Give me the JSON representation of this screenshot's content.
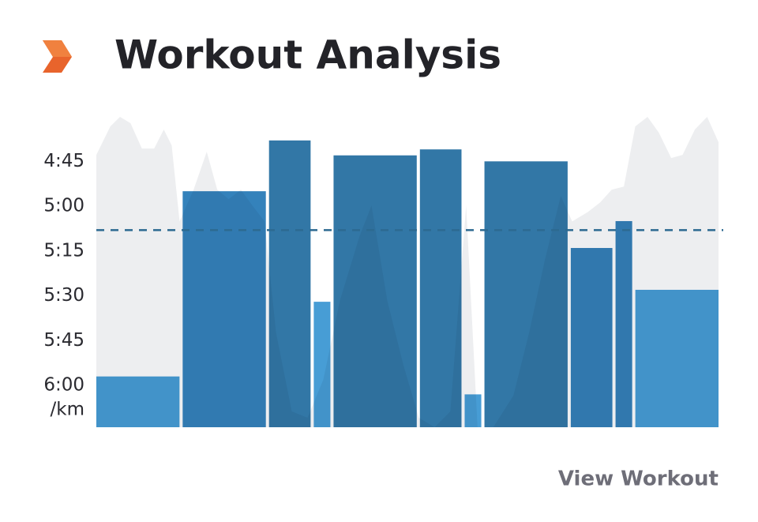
{
  "header": {
    "title": "Workout Analysis"
  },
  "chart_data": {
    "type": "bar",
    "y_unit_label": "/km",
    "distances": [
      1,
      1,
      0.5,
      0.2,
      1,
      0.5,
      0.2,
      1,
      0.5,
      0.2,
      1
    ],
    "values": [
      357,
      295,
      278,
      332,
      283,
      281,
      363,
      285,
      314,
      305,
      328
    ],
    "colors": [
      "#479dd5",
      "#3482bb",
      "#3277a6",
      "#479dd5",
      "#3277a6",
      "#3277a6",
      "#479dd5",
      "#3277a6",
      "#3480b8",
      "#3480b8",
      "#479dd5"
    ],
    "ylim": [
      374,
      268
    ],
    "yticks": [
      {
        "value": 285,
        "label": "4:45"
      },
      {
        "value": 300,
        "label": "5:00"
      },
      {
        "value": 315,
        "label": "5:15"
      },
      {
        "value": 330,
        "label": "5:30"
      },
      {
        "value": 345,
        "label": "5:45"
      },
      {
        "value": 360,
        "label": "6:00"
      }
    ],
    "average": 308,
    "average_color": "#2d6a91",
    "elevation": {
      "color": "rgba(20,30,50,0.075)",
      "ylim": [
        0,
        100
      ],
      "x": [
        0,
        0.16,
        0.27,
        0.39,
        0.52,
        0.66,
        0.77,
        0.86,
        0.95,
        1.11,
        1.26,
        1.38,
        1.51,
        1.65,
        1.78,
        1.92,
        2.05,
        2.23,
        2.41,
        2.59,
        2.78,
        3.0,
        3.14,
        3.32,
        3.5,
        3.68,
        3.86,
        4.04,
        4.22,
        4.35,
        4.53,
        4.76,
        4.94,
        5.12,
        5.3,
        5.43,
        5.61,
        5.75,
        5.88,
        6.02,
        6.15,
        6.29,
        6.42,
        6.56,
        6.69,
        6.83,
        6.97,
        7.1
      ],
      "values": [
        86,
        95,
        98,
        96,
        88,
        88,
        94,
        89,
        65,
        75,
        87,
        75,
        72,
        75,
        70,
        65,
        30,
        5,
        3,
        15,
        40,
        60,
        70,
        40,
        20,
        3,
        0,
        5,
        70,
        0,
        0,
        10,
        30,
        53,
        73,
        65,
        68,
        71,
        75,
        76,
        95,
        98,
        93,
        85,
        86,
        94,
        98,
        90
      ]
    }
  },
  "footer": {
    "link": "View Workout"
  }
}
